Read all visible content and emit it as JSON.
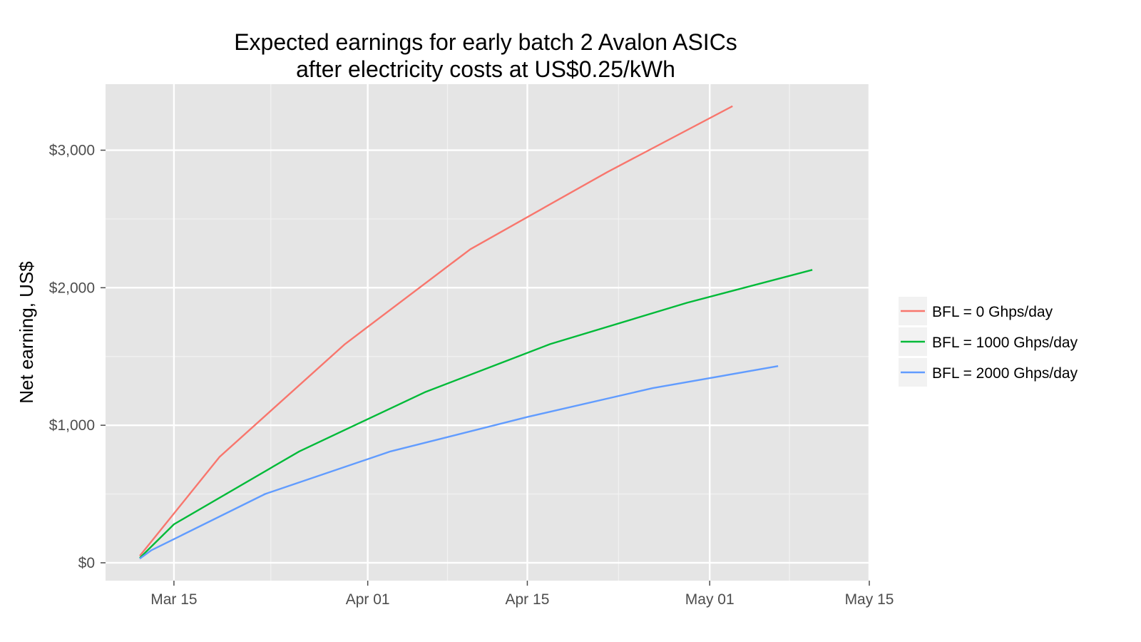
{
  "chart_data": {
    "type": "line",
    "title_lines": [
      "Expected earnings for early batch 2 Avalon ASICs",
      "after electricity costs at US$0.25/kWh"
    ],
    "xlabel": "",
    "ylabel": "Net earning, US$",
    "x_ticks": [
      "Mar 15",
      "Apr 01",
      "Apr 15",
      "May 01",
      "May 15"
    ],
    "x_tick_dates": [
      "2013-03-15",
      "2013-04-01",
      "2013-04-15",
      "2013-05-01",
      "2013-05-15"
    ],
    "y_ticks": [
      "$0",
      "$1,000",
      "$2,000",
      "$3,000"
    ],
    "y_tick_values": [
      0,
      1000,
      2000,
      3000
    ],
    "ylim": [
      -130,
      3480
    ],
    "xlim": [
      "2013-03-09",
      "2013-05-15"
    ],
    "grid": true,
    "legend_position": "right",
    "series": [
      {
        "name": "BFL = 0 Ghps/day",
        "color": "#F8766D",
        "points": [
          [
            "2013-03-12",
            50
          ],
          [
            "2013-03-19",
            770
          ],
          [
            "2013-03-30",
            1590
          ],
          [
            "2013-04-10",
            2280
          ],
          [
            "2013-04-22",
            2840
          ],
          [
            "2013-05-03",
            3320
          ]
        ]
      },
      {
        "name": "BFL = 1000 Ghps/day",
        "color": "#00BA38",
        "points": [
          [
            "2013-03-12",
            35
          ],
          [
            "2013-03-15",
            280
          ],
          [
            "2013-03-26",
            810
          ],
          [
            "2013-04-06",
            1240
          ],
          [
            "2013-04-17",
            1590
          ],
          [
            "2013-04-29",
            1890
          ],
          [
            "2013-05-10",
            2130
          ]
        ]
      },
      {
        "name": "BFL = 2000 Ghps/day",
        "color": "#619CFF",
        "points": [
          [
            "2013-03-12",
            30
          ],
          [
            "2013-03-13",
            90
          ],
          [
            "2013-03-23",
            500
          ],
          [
            "2013-04-03",
            810
          ],
          [
            "2013-04-15",
            1060
          ],
          [
            "2013-04-26",
            1270
          ],
          [
            "2013-05-07",
            1430
          ]
        ]
      }
    ]
  }
}
